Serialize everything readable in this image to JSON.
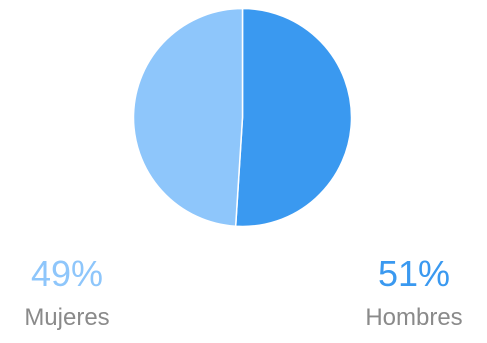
{
  "chart_data": {
    "type": "pie",
    "slices": [
      {
        "label": "Hombres",
        "value": 51,
        "value_label": "51%",
        "color": "#3a99f0"
      },
      {
        "label": "Mujeres",
        "value": 49,
        "value_label": "49%",
        "color": "#8ec6fb"
      }
    ],
    "title": "",
    "legend_placement": "bottom"
  }
}
